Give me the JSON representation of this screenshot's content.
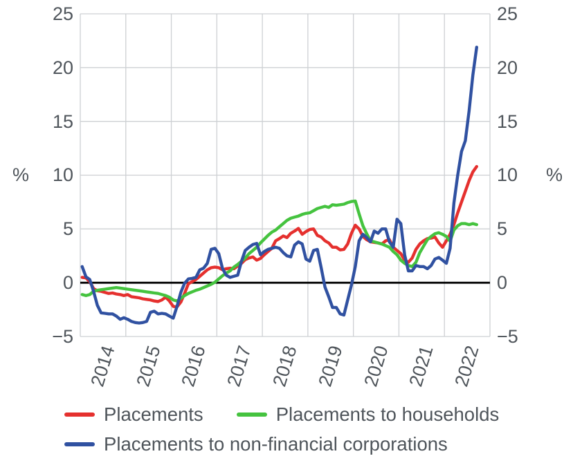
{
  "chart_data": {
    "type": "line",
    "title": "",
    "unit_label_left": "%",
    "unit_label_right": "%",
    "ylim": [
      -5,
      25
    ],
    "grid": true,
    "legend_position": "bottom",
    "y_tick_labels": [
      "25",
      "20",
      "15",
      "10",
      "5",
      "0",
      "−5"
    ],
    "y_tick_values": [
      25,
      20,
      15,
      10,
      5,
      0,
      -5
    ],
    "x_years": [
      "2014",
      "2015",
      "2016",
      "2017",
      "2018",
      "2019",
      "2020",
      "2021",
      "2022"
    ],
    "x_start": "2014-01",
    "x_end": "2022-09",
    "months_span": 108,
    "zero_line": 0,
    "series": [
      {
        "name": "Placements",
        "color": "#e5302e",
        "values": [
          0.5,
          0.45,
          0.1,
          -0.55,
          -0.75,
          -0.8,
          -0.9,
          -1.0,
          -0.95,
          -1.05,
          -1.1,
          -1.2,
          -1.1,
          -1.3,
          -1.35,
          -1.4,
          -1.5,
          -1.55,
          -1.6,
          -1.7,
          -1.75,
          -1.6,
          -1.35,
          -1.7,
          -2.2,
          -2.25,
          -1.8,
          -1.0,
          -0.1,
          0.1,
          0.3,
          0.6,
          0.9,
          1.2,
          1.4,
          1.45,
          1.4,
          1.2,
          1.3,
          1.35,
          1.3,
          1.55,
          1.8,
          2.15,
          2.3,
          2.4,
          2.1,
          2.25,
          2.6,
          2.9,
          3.2,
          3.9,
          4.1,
          4.35,
          4.2,
          4.6,
          4.8,
          5.05,
          4.5,
          4.75,
          4.95,
          5.0,
          4.4,
          4.25,
          3.9,
          3.7,
          3.3,
          3.3,
          3.05,
          3.1,
          3.6,
          4.6,
          5.35,
          5.0,
          4.3,
          4.0,
          3.8,
          3.75,
          3.7,
          3.6,
          3.9,
          4.0,
          3.3,
          3.0,
          2.7,
          2.1,
          1.9,
          2.3,
          3.1,
          3.6,
          3.9,
          4.1,
          4.15,
          4.25,
          3.7,
          3.3,
          3.9,
          4.5,
          5.4,
          6.5,
          7.5,
          8.5,
          9.5,
          10.3,
          10.8
        ]
      },
      {
        "name": "Placements to households",
        "color": "#45c33f",
        "values": [
          -1.1,
          -1.2,
          -1.1,
          -0.8,
          -0.7,
          -0.65,
          -0.6,
          -0.55,
          -0.5,
          -0.45,
          -0.5,
          -0.55,
          -0.6,
          -0.65,
          -0.7,
          -0.75,
          -0.8,
          -0.85,
          -0.9,
          -0.95,
          -1.0,
          -1.1,
          -1.2,
          -1.35,
          -1.6,
          -1.7,
          -1.45,
          -1.2,
          -1.0,
          -0.85,
          -0.7,
          -0.6,
          -0.45,
          -0.3,
          -0.15,
          0.05,
          0.35,
          0.65,
          0.9,
          1.1,
          1.45,
          1.7,
          2.0,
          2.3,
          2.7,
          3.0,
          3.3,
          3.7,
          4.05,
          4.4,
          4.7,
          4.9,
          5.2,
          5.5,
          5.8,
          6.0,
          6.1,
          6.2,
          6.35,
          6.45,
          6.5,
          6.7,
          6.9,
          7.0,
          7.1,
          7.0,
          7.25,
          7.2,
          7.25,
          7.3,
          7.45,
          7.55,
          7.6,
          6.4,
          5.3,
          4.55,
          3.9,
          3.8,
          3.7,
          3.6,
          3.45,
          3.3,
          2.9,
          2.6,
          2.1,
          1.8,
          1.6,
          1.5,
          1.9,
          2.8,
          3.4,
          4.0,
          4.3,
          4.55,
          4.65,
          4.5,
          4.3,
          3.85,
          4.9,
          5.3,
          5.5,
          5.5,
          5.4,
          5.5,
          5.4
        ]
      },
      {
        "name": "Placements to non-financial corporations",
        "color": "#3051a1",
        "values": [
          1.5,
          0.55,
          0.3,
          -0.8,
          -2.1,
          -2.8,
          -2.85,
          -2.9,
          -2.9,
          -3.1,
          -3.4,
          -3.25,
          -3.4,
          -3.6,
          -3.7,
          -3.75,
          -3.7,
          -3.6,
          -2.75,
          -2.65,
          -2.9,
          -2.85,
          -2.9,
          -3.1,
          -3.3,
          -2.2,
          -0.9,
          -0.05,
          0.35,
          0.4,
          0.5,
          1.2,
          1.35,
          1.8,
          3.1,
          3.2,
          2.7,
          1.3,
          0.7,
          0.5,
          0.6,
          0.7,
          2.0,
          3.0,
          3.3,
          3.55,
          3.65,
          2.6,
          2.9,
          3.1,
          3.2,
          3.3,
          3.2,
          2.8,
          2.5,
          2.4,
          3.5,
          3.8,
          3.6,
          2.2,
          2.0,
          3.0,
          3.1,
          1.4,
          -0.4,
          -1.3,
          -2.3,
          -2.3,
          -2.9,
          -3.0,
          -1.6,
          -0.2,
          1.5,
          3.9,
          4.5,
          4.2,
          3.8,
          4.8,
          4.6,
          5.0,
          5.0,
          3.8,
          3.3,
          5.9,
          5.5,
          2.6,
          1.1,
          1.1,
          1.6,
          1.5,
          1.5,
          1.3,
          1.6,
          2.2,
          2.35,
          2.1,
          1.8,
          3.2,
          7.4,
          10.0,
          12.2,
          13.2,
          16.0,
          19.3,
          21.9
        ]
      }
    ]
  },
  "colors": {
    "grid": "#cdd0d3",
    "zero_line": "#000000",
    "axis_text": "#4f555b",
    "background": "#ffffff"
  }
}
